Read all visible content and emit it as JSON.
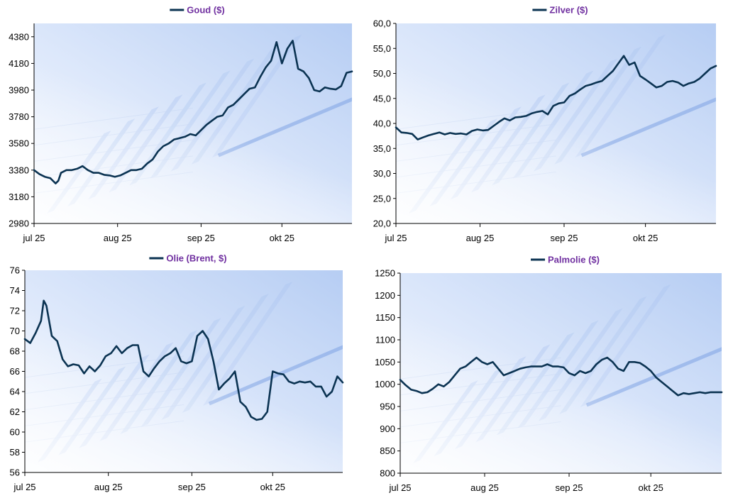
{
  "colors": {
    "line": "#0b3352",
    "title": "#7030a0",
    "axis": "#000000",
    "background": "#ffffff"
  },
  "chart_data": [
    {
      "type": "line",
      "title": "Goud ($)",
      "ylim": [
        2980,
        4480
      ],
      "yticks": [
        2980,
        3180,
        3380,
        3580,
        3780,
        3980,
        4180,
        4380
      ],
      "ytick_labels": [
        "2980",
        "3180",
        "3380",
        "3580",
        "3780",
        "3980",
        "4180",
        "4380"
      ],
      "xlim": [
        0,
        118
      ],
      "xticks": [
        0,
        31,
        62,
        92
      ],
      "xtick_labels": [
        "jul 25",
        "aug 25",
        "sep 25",
        "okt 25"
      ],
      "series": [
        {
          "name": "Goud ($)",
          "x": [
            0,
            2,
            4,
            6,
            8,
            9,
            10,
            11,
            12,
            14,
            16,
            18,
            20,
            22,
            24,
            26,
            28,
            30,
            32,
            34,
            36,
            38,
            40,
            42,
            44,
            46,
            48,
            50,
            52,
            54,
            56,
            58,
            60,
            62,
            64,
            66,
            68,
            70,
            72,
            74,
            76,
            78,
            80,
            82,
            84,
            86,
            88,
            90,
            92,
            94,
            96,
            98,
            100,
            102,
            104,
            106,
            108,
            110,
            112,
            114,
            116,
            118
          ],
          "values": [
            3380,
            3350,
            3330,
            3320,
            3280,
            3300,
            3360,
            3370,
            3380,
            3380,
            3390,
            3410,
            3380,
            3360,
            3360,
            3345,
            3340,
            3330,
            3340,
            3360,
            3380,
            3380,
            3390,
            3430,
            3460,
            3520,
            3560,
            3580,
            3610,
            3620,
            3630,
            3650,
            3640,
            3680,
            3720,
            3750,
            3780,
            3790,
            3850,
            3870,
            3910,
            3950,
            3990,
            4000,
            4080,
            4150,
            4200,
            4340,
            4180,
            4290,
            4350,
            4140,
            4120,
            4070,
            3980,
            3970,
            4000,
            3990,
            3985,
            4010,
            4110,
            4120
          ]
        }
      ]
    },
    {
      "type": "line",
      "title": "Zilver ($)",
      "ylim": [
        20,
        60
      ],
      "yticks": [
        20,
        25,
        30,
        35,
        40,
        45,
        50,
        55,
        60
      ],
      "ytick_labels": [
        "20,0",
        "25,0",
        "30,0",
        "35,0",
        "40,0",
        "45,0",
        "50,0",
        "55,0",
        "60,0"
      ],
      "xlim": [
        0,
        118
      ],
      "xticks": [
        0,
        31,
        62,
        92
      ],
      "xtick_labels": [
        "jul 25",
        "aug 25",
        "sep 25",
        "okt 25"
      ],
      "series": [
        {
          "name": "Zilver ($)",
          "x": [
            0,
            2,
            4,
            6,
            8,
            10,
            12,
            14,
            16,
            18,
            20,
            22,
            24,
            26,
            28,
            30,
            32,
            34,
            36,
            38,
            40,
            42,
            44,
            46,
            48,
            50,
            52,
            54,
            56,
            58,
            60,
            62,
            64,
            66,
            68,
            70,
            72,
            74,
            76,
            78,
            80,
            82,
            84,
            86,
            88,
            90,
            92,
            94,
            96,
            98,
            100,
            102,
            104,
            106,
            108,
            110,
            112,
            114,
            116,
            118
          ],
          "values": [
            39.2,
            38.2,
            38.1,
            37.9,
            36.8,
            37.2,
            37.6,
            37.9,
            38.2,
            37.8,
            38.1,
            37.9,
            38.0,
            37.8,
            38.5,
            38.8,
            38.6,
            38.7,
            39.5,
            40.3,
            41.0,
            40.6,
            41.2,
            41.3,
            41.5,
            42.0,
            42.3,
            42.5,
            41.8,
            43.5,
            44.0,
            44.2,
            45.5,
            46.0,
            46.8,
            47.5,
            47.8,
            48.2,
            48.5,
            49.5,
            50.5,
            52.0,
            53.5,
            51.7,
            52.2,
            49.5,
            48.8,
            48.0,
            47.2,
            47.5,
            48.3,
            48.5,
            48.2,
            47.5,
            48.0,
            48.3,
            49.0,
            50.0,
            51.0,
            51.5
          ]
        }
      ]
    },
    {
      "type": "line",
      "title": "Olie (Brent, $)",
      "ylim": [
        56,
        76
      ],
      "yticks": [
        56,
        58,
        60,
        62,
        64,
        66,
        68,
        70,
        72,
        74,
        76
      ],
      "ytick_labels": [
        "56",
        "58",
        "60",
        "62",
        "64",
        "66",
        "68",
        "70",
        "72",
        "74",
        "76"
      ],
      "xlim": [
        0,
        118
      ],
      "xticks": [
        0,
        31,
        62,
        92
      ],
      "xtick_labels": [
        "jul 25",
        "aug 25",
        "sep 25",
        "okt 25"
      ],
      "series": [
        {
          "name": "Olie (Brent, $)",
          "x": [
            0,
            2,
            4,
            6,
            7,
            8,
            10,
            12,
            14,
            16,
            18,
            20,
            22,
            24,
            26,
            28,
            30,
            32,
            34,
            36,
            38,
            40,
            42,
            44,
            46,
            48,
            50,
            52,
            54,
            56,
            58,
            60,
            62,
            64,
            66,
            68,
            70,
            72,
            74,
            76,
            78,
            80,
            82,
            84,
            86,
            88,
            90,
            92,
            94,
            96,
            98,
            100,
            102,
            104,
            106,
            108,
            110,
            112,
            114,
            116,
            118
          ],
          "values": [
            69.2,
            68.8,
            69.8,
            71.0,
            73.0,
            72.5,
            69.5,
            69.0,
            67.2,
            66.5,
            66.7,
            66.6,
            65.8,
            66.5,
            66.0,
            66.6,
            67.5,
            67.8,
            68.5,
            67.8,
            68.3,
            68.6,
            68.6,
            66.0,
            65.5,
            66.3,
            67.0,
            67.5,
            67.8,
            68.3,
            67.0,
            66.8,
            67.0,
            69.5,
            70.0,
            69.2,
            67.0,
            64.2,
            64.8,
            65.3,
            66.0,
            63.0,
            62.5,
            61.5,
            61.2,
            61.3,
            62.0,
            66.0,
            65.8,
            65.7,
            65.0,
            64.8,
            65.0,
            64.9,
            65.0,
            64.5,
            64.5,
            63.5,
            64.0,
            65.5,
            64.9
          ]
        }
      ]
    },
    {
      "type": "line",
      "title": "Palmolie ($)",
      "ylim": [
        800,
        1250
      ],
      "yticks": [
        800,
        850,
        900,
        950,
        1000,
        1050,
        1100,
        1150,
        1200,
        1250
      ],
      "ytick_labels": [
        "800",
        "850",
        "900",
        "950",
        "1000",
        "1050",
        "1100",
        "1150",
        "1200",
        "1250"
      ],
      "xlim": [
        0,
        118
      ],
      "xticks": [
        0,
        31,
        62,
        92
      ],
      "xtick_labels": [
        "jul 25",
        "aug 25",
        "sep 25",
        "okt 25"
      ],
      "series": [
        {
          "name": "Palmolie ($)",
          "x": [
            0,
            2,
            4,
            6,
            8,
            10,
            12,
            14,
            16,
            18,
            20,
            22,
            24,
            26,
            28,
            30,
            32,
            34,
            36,
            38,
            40,
            42,
            44,
            46,
            48,
            50,
            52,
            54,
            56,
            58,
            60,
            62,
            64,
            66,
            68,
            70,
            72,
            74,
            76,
            78,
            80,
            82,
            84,
            86,
            88,
            90,
            92,
            94,
            96,
            98,
            100,
            102,
            104,
            106,
            108,
            110,
            112,
            114,
            116,
            118
          ],
          "values": [
            1010,
            998,
            988,
            985,
            980,
            982,
            990,
            1000,
            995,
            1005,
            1020,
            1035,
            1040,
            1050,
            1060,
            1050,
            1045,
            1050,
            1035,
            1020,
            1025,
            1030,
            1035,
            1038,
            1040,
            1040,
            1040,
            1045,
            1040,
            1040,
            1038,
            1025,
            1020,
            1030,
            1025,
            1030,
            1045,
            1055,
            1060,
            1050,
            1035,
            1030,
            1050,
            1050,
            1048,
            1040,
            1030,
            1015,
            1005,
            995,
            985,
            975,
            980,
            978,
            980,
            982,
            980,
            982,
            982,
            982
          ]
        }
      ]
    }
  ]
}
